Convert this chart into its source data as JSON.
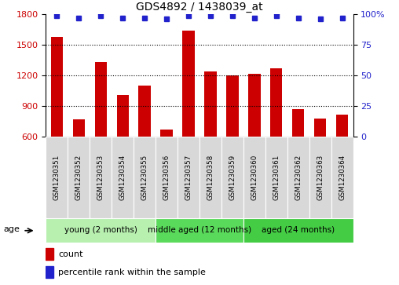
{
  "title": "GDS4892 / 1438039_at",
  "samples": [
    "GSM1230351",
    "GSM1230352",
    "GSM1230353",
    "GSM1230354",
    "GSM1230355",
    "GSM1230356",
    "GSM1230357",
    "GSM1230358",
    "GSM1230359",
    "GSM1230360",
    "GSM1230361",
    "GSM1230362",
    "GSM1230363",
    "GSM1230364"
  ],
  "counts": [
    1580,
    770,
    1330,
    1010,
    1100,
    670,
    1640,
    1240,
    1205,
    1220,
    1270,
    870,
    775,
    820
  ],
  "percentiles": [
    99,
    97,
    99,
    97,
    97,
    96,
    99,
    99,
    99,
    97,
    99,
    97,
    96,
    97
  ],
  "ylim_left": [
    600,
    1800
  ],
  "yticks_left": [
    600,
    900,
    1200,
    1500,
    1800
  ],
  "ylim_right": [
    0,
    100
  ],
  "yticks_right": [
    0,
    25,
    50,
    75,
    100
  ],
  "bar_color": "#cc0000",
  "dot_color": "#2222cc",
  "groups": [
    {
      "label": "young (2 months)",
      "start": 0,
      "end": 5,
      "color": "#b8f0b0"
    },
    {
      "label": "middle aged (12 months)",
      "start": 5,
      "end": 9,
      "color": "#5ada5a"
    },
    {
      "label": "aged (24 months)",
      "start": 9,
      "end": 14,
      "color": "#44cc44"
    }
  ],
  "age_label": "age",
  "legend_count_label": "count",
  "legend_pct_label": "percentile rank within the sample",
  "background_color": "#ffffff",
  "cell_bg_color": "#d8d8d8",
  "cell_border_color": "#ffffff"
}
